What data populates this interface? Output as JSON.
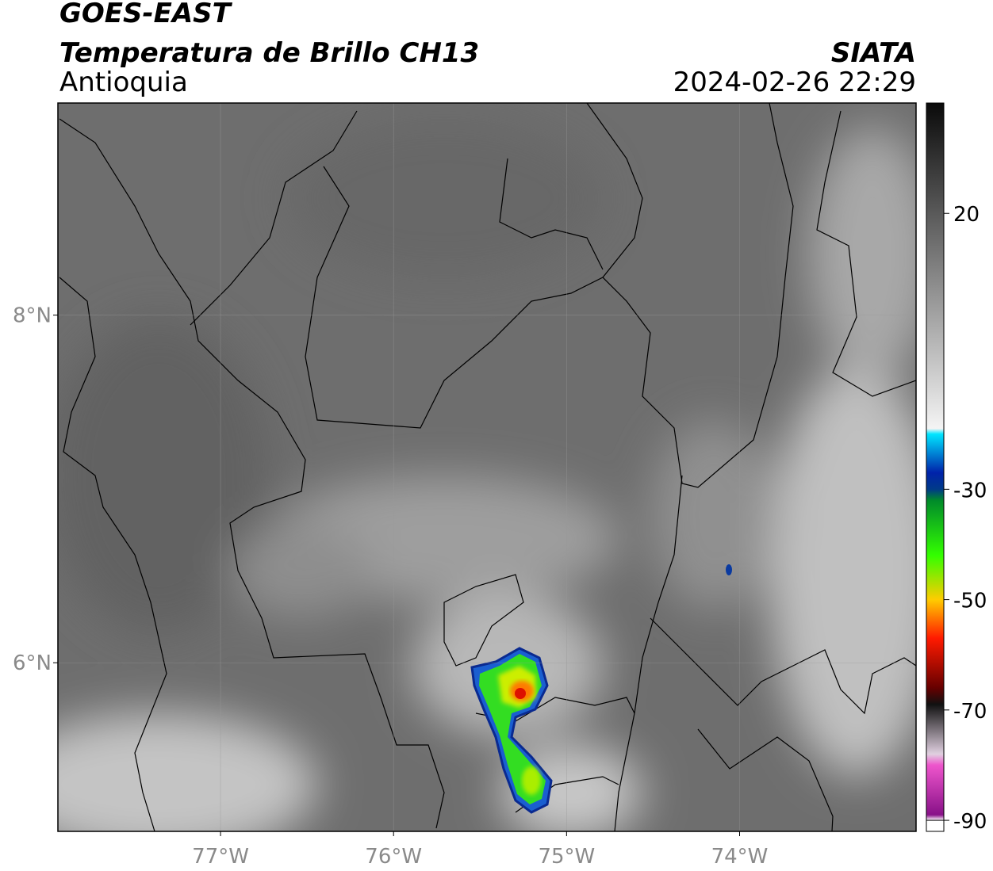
{
  "map": {
    "title": "GOES-EAST",
    "subtitle": "Temperatura de Brillo CH13",
    "region": "Antioquia",
    "source": "SIATA",
    "timestamp": "2024-02-26 22:29",
    "xlim": [
      -77.94,
      -72.98
    ],
    "ylim": [
      5.03,
      9.22
    ],
    "xticks": [
      {
        "value": -77,
        "label": "77°W"
      },
      {
        "value": -76,
        "label": "76°W"
      },
      {
        "value": -75,
        "label": "75°W"
      },
      {
        "value": -74,
        "label": "74°W"
      }
    ],
    "yticks": [
      {
        "value": 8,
        "label": "8°N"
      },
      {
        "value": 6,
        "label": "6°N"
      }
    ],
    "grid": true,
    "colorbar": {
      "lim": [
        -92,
        40
      ],
      "ticks": [
        20,
        -30,
        -50,
        -70,
        -90
      ],
      "stops": [
        {
          "value": 40,
          "color": "#0a0a0a"
        },
        {
          "value": -19,
          "color": "#f4f4f4"
        },
        {
          "value": -20,
          "color": "#00e5ff"
        },
        {
          "value": -27,
          "color": "#0022aa"
        },
        {
          "value": -30,
          "color": "#003a88"
        },
        {
          "value": -32,
          "color": "#008a2a"
        },
        {
          "value": -42,
          "color": "#33ff00"
        },
        {
          "value": -50,
          "color": "#ffcc00"
        },
        {
          "value": -57,
          "color": "#ff1a00"
        },
        {
          "value": -66,
          "color": "#660000"
        },
        {
          "value": -69,
          "color": "#111111"
        },
        {
          "value": -78,
          "color": "#e0d0e0"
        },
        {
          "value": -80,
          "color": "#ee55cc"
        },
        {
          "value": -89,
          "color": "#881188"
        },
        {
          "value": -90,
          "color": "#ffffff"
        }
      ]
    }
  }
}
